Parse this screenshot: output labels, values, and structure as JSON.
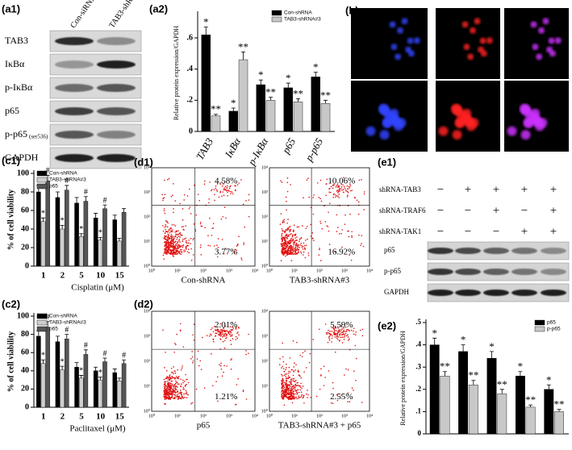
{
  "chart_data": [
    {
      "type": "bar",
      "panel": "(a2)",
      "y_label": "Relative protein expression/GAPDH",
      "categories": [
        "TAB3",
        "IκBα",
        "p-IκBα",
        "p65",
        "p-p65"
      ],
      "ylim": [
        0,
        0.75
      ],
      "yticks": [
        0,
        {
          "value": 0.2,
          "label": ".2"
        },
        {
          "value": 0.4,
          "label": ".4"
        },
        {
          "value": 0.6,
          "label": ".6"
        }
      ],
      "legend": "upper right",
      "series": [
        {
          "name": "Con-shRNA",
          "color": "#000000",
          "values": [
            0.62,
            0.13,
            0.3,
            0.28,
            0.35
          ],
          "errors": [
            0.05,
            0.02,
            0.03,
            0.03,
            0.03
          ],
          "marks": [
            "*",
            "*",
            "*",
            "*",
            "*"
          ]
        },
        {
          "name": "TAB3-shRNA#3",
          "color": "#c8c8c8",
          "values": [
            0.1,
            0.46,
            0.2,
            0.19,
            0.18
          ],
          "errors": [
            0.01,
            0.05,
            0.02,
            0.02,
            0.02
          ],
          "marks": [
            "**",
            "**",
            "**",
            "**",
            "**"
          ]
        }
      ]
    },
    {
      "type": "bar",
      "panel": "(c1)",
      "y_label": "% of cell viability",
      "x_label": "Cisplatin (μM)",
      "categories": [
        "1",
        "2",
        "5",
        "10",
        "15"
      ],
      "ylim": [
        0,
        100
      ],
      "yticks": [
        0,
        20,
        40,
        60,
        80,
        100
      ],
      "legend": "upper left",
      "series": [
        {
          "name": "Con-shRNA",
          "color": "#000000",
          "values": [
            80,
            74,
            68,
            52,
            50
          ],
          "errors": [
            7,
            6,
            6,
            5,
            5
          ],
          "marks": [
            null,
            null,
            null,
            null,
            null
          ]
        },
        {
          "name": "TAB3-shRNA#3",
          "color": "#cfcfcf",
          "values": [
            48,
            40,
            32,
            28,
            27
          ],
          "errors": [
            4,
            4,
            3,
            3,
            3
          ],
          "marks": [
            "*",
            "*",
            "*",
            "*",
            null
          ]
        },
        {
          "name": "p65",
          "color": "#555555",
          "values": [
            92,
            82,
            70,
            62,
            58
          ],
          "errors": [
            6,
            5,
            5,
            4,
            4
          ],
          "marks": [
            "#",
            "#",
            "#",
            "#",
            null
          ]
        }
      ]
    },
    {
      "type": "bar",
      "panel": "(c2)",
      "y_label": "% of cell viability",
      "x_label": "Paclitaxel (μM)",
      "categories": [
        "1",
        "2",
        "5",
        "10",
        "15"
      ],
      "ylim": [
        0,
        100
      ],
      "yticks": [
        0,
        20,
        40,
        60,
        80,
        100
      ],
      "legend": "upper left",
      "series": [
        {
          "name": "Con-shRNA",
          "color": "#000000",
          "values": [
            78,
            72,
            44,
            40,
            38
          ],
          "errors": [
            6,
            6,
            5,
            4,
            4
          ],
          "marks": [
            null,
            null,
            null,
            null,
            null
          ]
        },
        {
          "name": "TAB3-shRNA#3",
          "color": "#cfcfcf",
          "values": [
            48,
            41,
            32,
            30,
            29
          ],
          "errors": [
            4,
            4,
            3,
            3,
            3
          ],
          "marks": [
            "*",
            "*",
            "*",
            "*",
            null
          ]
        },
        {
          "name": "p65",
          "color": "#555555",
          "values": [
            88,
            75,
            58,
            50,
            48
          ],
          "errors": [
            6,
            5,
            5,
            4,
            4
          ],
          "marks": [
            "#",
            "#",
            "#",
            "#",
            "#"
          ]
        }
      ]
    },
    {
      "type": "bar",
      "panel": "(e2)",
      "y_label": "Relative protein expression/GAPDH",
      "categories": [
        null,
        null,
        null,
        null,
        null
      ],
      "ylim": [
        0,
        0.5
      ],
      "yticks": [
        0,
        {
          "value": 0.1,
          "label": ".1"
        },
        {
          "value": 0.2,
          "label": ".2"
        },
        {
          "value": 0.3,
          "label": ".3"
        },
        {
          "value": 0.4,
          "label": ".4"
        },
        {
          "value": 0.5,
          "label": ".5"
        }
      ],
      "legend": "upper right",
      "series": [
        {
          "name": "p65",
          "color": "#000000",
          "values": [
            0.4,
            0.37,
            0.34,
            0.26,
            0.2
          ],
          "errors": [
            0.03,
            0.03,
            0.03,
            0.02,
            0.02
          ],
          "marks": [
            "*",
            "*",
            "*",
            "*",
            "*"
          ]
        },
        {
          "name": "p-p65",
          "color": "#c8c8c8",
          "values": [
            0.26,
            0.22,
            0.18,
            0.12,
            0.1
          ],
          "errors": [
            0.02,
            0.02,
            0.02,
            0.01,
            0.01
          ],
          "marks": [
            "**",
            "**",
            "**",
            "**",
            "**"
          ]
        }
      ]
    }
  ],
  "blot_a1": {
    "panel": "(a1)",
    "lanes": [
      "Con-siRNA",
      "TAB3-shRNA#3"
    ],
    "rows": [
      "TAB3",
      "IκBα",
      "p-IκBα",
      "p65",
      "p-p65",
      "GAPDH"
    ],
    "site": "(ser536)"
  },
  "fluorescence_b": {
    "panel": "(b)",
    "rows": [
      "Con-shRNA",
      "TAB3-shRNA#3"
    ]
  },
  "flow": {
    "axis_ticks": [
      "10⁰",
      "10¹",
      "10²",
      "10³",
      "10⁴"
    ],
    "panels": [
      {
        "panel": "(d1)",
        "plots": [
          {
            "caption": "Con-shRNA",
            "upper_right": "4.58%",
            "lower_right": "3.77%"
          },
          {
            "caption": "TAB3-shRNA#3",
            "upper_right": "10.06%",
            "lower_right": "16.92%"
          }
        ]
      },
      {
        "panel": "(d2)",
        "plots": [
          {
            "caption": "p65",
            "upper_right": "2.01%",
            "lower_right": "1.21%"
          },
          {
            "caption": "TAB3-shRNA#3 + p65",
            "upper_right": "5.59%",
            "lower_right": "2.55%"
          }
        ]
      }
    ]
  },
  "blot_e1": {
    "panel": "(e1)",
    "conditions": [
      {
        "name": "shRNA-TAB3",
        "signs": [
          "−",
          "+",
          "+",
          "+",
          "+"
        ]
      },
      {
        "name": "shRNA-TRAF6",
        "signs": [
          "−",
          "−",
          "+",
          "−",
          "+"
        ]
      },
      {
        "name": "shRNA-TAK1",
        "signs": [
          "−",
          "−",
          "−",
          "+",
          "+"
        ]
      }
    ],
    "rows": [
      "p65",
      "p-p65",
      "GAPDH"
    ]
  }
}
